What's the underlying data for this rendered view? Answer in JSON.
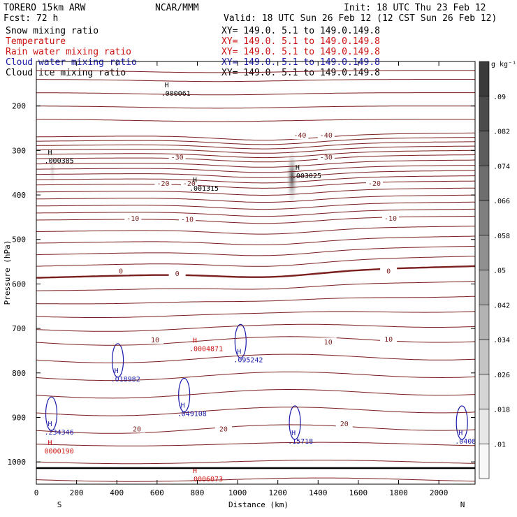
{
  "header": {
    "model": "TORERO  15km ARW",
    "org": "NCAR/MMM",
    "init": "Init: 18 UTC Thu 23 Feb 12",
    "fcst": "Fcst:   72 h",
    "valid": "Valid: 18 UTC Sun 26 Feb 12 (12 CST Sun 26 Feb 12)"
  },
  "colors": {
    "black": "#000000",
    "temperature": "#cc1111",
    "rain": "#cc1111",
    "cloud_water": "#1a1aaa",
    "contour": "#7a1e1e"
  },
  "chart_data": {
    "type": "contour cross-section",
    "xlabel": "Distance (km)",
    "ylabel": "Pressure (hPa)",
    "xlim": [
      0,
      2180
    ],
    "ylim": [
      1050,
      100
    ],
    "x_ticks": [
      "0",
      "200",
      "400",
      "600",
      "800",
      "1000",
      "1200",
      "1400",
      "1600",
      "1800",
      "2000"
    ],
    "y_ticks": [
      "200",
      "300",
      "400",
      "500",
      "600",
      "700",
      "800",
      "900",
      "1000"
    ],
    "x_end_labels": [
      "S",
      "N"
    ],
    "fields": [
      {
        "name": "Snow mixing ratio",
        "xy": "XY= 149.0.  5.1 to 149.0.149.8",
        "color": "#000000"
      },
      {
        "name": "Temperature",
        "xy": "XY= 149.0.  5.1 to 149.0.149.8",
        "color": "#cc1111"
      },
      {
        "name": "Rain water mixing ratio",
        "xy": "XY= 149.0.  5.1 to 149.0.149.8",
        "color": "#cc1111"
      },
      {
        "name": "Cloud water mixing ratio",
        "xy": "XY= 149.0.  5.1 to 149.0.149.8",
        "color": "#1a1aaa"
      },
      {
        "name": "Cloud ice mixing ratio",
        "xy": "XY= 149.0.  5.1 to 149.0.149.8",
        "color": "#000000"
      }
    ],
    "colorbar": {
      "unit": "g kg⁻¹",
      "ticks": [
        ".01",
        ".018",
        ".026",
        ".034",
        ".042",
        ".05",
        ".058",
        ".066",
        ".074",
        ".082",
        ".09"
      ],
      "range": [
        0.006,
        0.098
      ]
    },
    "temperature_isotherms": [
      {
        "level": -40,
        "labels": [
          {
            "x": 1310,
            "p": 265,
            "text": "-40"
          },
          {
            "x": 1440,
            "p": 265,
            "text": "-40"
          }
        ]
      },
      {
        "level": -30,
        "labels": [
          {
            "x": 700,
            "p": 314,
            "text": "-30"
          },
          {
            "x": 1440,
            "p": 314,
            "text": "-30"
          }
        ]
      },
      {
        "level": -20,
        "labels": [
          {
            "x": 630,
            "p": 373,
            "text": "-20"
          },
          {
            "x": 760,
            "p": 373,
            "text": "-20"
          },
          {
            "x": 1680,
            "p": 373,
            "text": "-20"
          }
        ]
      },
      {
        "level": -10,
        "labels": [
          {
            "x": 480,
            "p": 452,
            "text": "-10"
          },
          {
            "x": 750,
            "p": 454,
            "text": "-10"
          },
          {
            "x": 1760,
            "p": 452,
            "text": "-10"
          }
        ]
      },
      {
        "level": 0,
        "labels": [
          {
            "x": 420,
            "p": 570,
            "text": "0"
          },
          {
            "x": 700,
            "p": 576,
            "text": "0"
          },
          {
            "x": 1750,
            "p": 570,
            "text": "0"
          }
        ]
      },
      {
        "level": 10,
        "labels": [
          {
            "x": 590,
            "p": 725,
            "text": "10"
          },
          {
            "x": 1450,
            "p": 730,
            "text": "10"
          },
          {
            "x": 1750,
            "p": 723,
            "text": "10"
          }
        ]
      },
      {
        "level": 20,
        "labels": [
          {
            "x": 500,
            "p": 925,
            "text": "20"
          },
          {
            "x": 930,
            "p": 925,
            "text": "20"
          },
          {
            "x": 1530,
            "p": 913,
            "text": "20"
          }
        ]
      }
    ],
    "extrema": [
      {
        "x": 40,
        "p": 310,
        "label": ".000385",
        "field": "snow"
      },
      {
        "x": 760,
        "p": 372,
        "label": ".001315",
        "field": "snow"
      },
      {
        "x": 1270,
        "p": 343,
        "label": ".003025",
        "field": "snow"
      },
      {
        "x": 620,
        "p": 158,
        "label": ".000061",
        "field": "snow"
      },
      {
        "x": 760,
        "p": 732,
        "label": ".0004871",
        "field": "rain"
      },
      {
        "x": 40,
        "p": 962,
        "label": "0000190",
        "field": "rain"
      },
      {
        "x": 760,
        "p": 1025,
        "label": ".0006073",
        "field": "rain"
      },
      {
        "x": 370,
        "p": 800,
        "label": ".018982",
        "field": "cloud_water"
      },
      {
        "x": 980,
        "p": 757,
        "label": ".095242",
        "field": "cloud_water"
      },
      {
        "x": 700,
        "p": 878,
        "label": ".049108",
        "field": "cloud_water"
      },
      {
        "x": 40,
        "p": 920,
        "label": ".234346",
        "field": "cloud_water"
      },
      {
        "x": 1250,
        "p": 940,
        "label": ".15718",
        "field": "cloud_water"
      },
      {
        "x": 2080,
        "p": 940,
        "label": ".0408",
        "field": "cloud_water"
      }
    ],
    "snow_cores": [
      {
        "x": 1270,
        "p": 360,
        "value": 0.09
      },
      {
        "x": 80,
        "p": 345,
        "value": 0.02
      }
    ]
  }
}
